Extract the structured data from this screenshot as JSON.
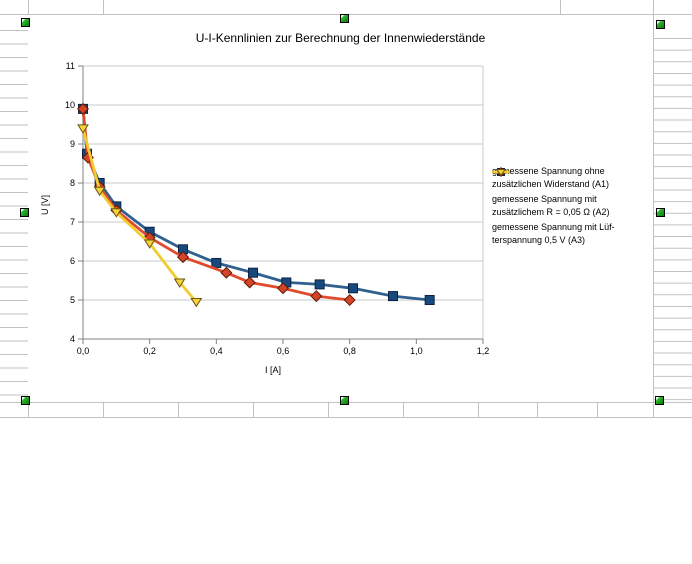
{
  "window": {
    "background_color": "#ffffff",
    "sheet_grid_color": "#c2c2c2",
    "selection_handle_color": "#2fb52f"
  },
  "chart_data": {
    "type": "line",
    "title": "U-I-Kennlinien zur Berechnung der Innenwiederstände",
    "xlabel": "I [A]",
    "ylabel": "U [V]",
    "xlim": [
      0,
      1.2
    ],
    "ylim": [
      4,
      11
    ],
    "x_tick_values": [
      0,
      0.2,
      0.4,
      0.6,
      0.8,
      1.0,
      1.2
    ],
    "x_tick_labels": [
      "0,0",
      "0,2",
      "0,4",
      "0,6",
      "0,8",
      "1,0",
      "1,2"
    ],
    "y_tick_values": [
      4,
      5,
      6,
      7,
      8,
      9,
      10,
      11
    ],
    "y_tick_labels": [
      "4",
      "5",
      "6",
      "7",
      "8",
      "9",
      "10",
      "11"
    ],
    "grid": "horizontal",
    "grid_color": "#c9c9c9",
    "axis_color": "#808080",
    "legend_position": "right",
    "series": [
      {
        "name": "gemessene Spannung ohne zusätzlichen Widerstand (A1)",
        "legend_lines": [
          "gemessene Spannung ohne",
          "zusätzlichen Widerstand (A1)"
        ],
        "marker": "square",
        "line_color": "#30618e",
        "marker_fill": "#17497e",
        "marker_stroke": "#0c2340",
        "points": [
          [
            0,
            9.9
          ],
          [
            0.012,
            8.75
          ],
          [
            0.05,
            8.0
          ],
          [
            0.1,
            7.4
          ],
          [
            0.2,
            6.75
          ],
          [
            0.3,
            6.3
          ],
          [
            0.4,
            5.95
          ],
          [
            0.51,
            5.7
          ],
          [
            0.61,
            5.45
          ],
          [
            0.71,
            5.4
          ],
          [
            0.81,
            5.3
          ],
          [
            0.93,
            5.1
          ],
          [
            1.04,
            5.0
          ]
        ]
      },
      {
        "name": "gemessene Spannung mit zusätzlichem R = 0,05 Ω (A2)",
        "legend_lines": [
          "gemessene Spannung mit",
          "zusätzlichem R = 0,05 Ω (A2)"
        ],
        "marker": "diamond",
        "line_color": "#e04b2c",
        "marker_fill": "#d64427",
        "marker_stroke": "#5c1a08",
        "points": [
          [
            0,
            9.9
          ],
          [
            0.015,
            8.65
          ],
          [
            0.05,
            7.9
          ],
          [
            0.1,
            7.3
          ],
          [
            0.2,
            6.6
          ],
          [
            0.3,
            6.1
          ],
          [
            0.43,
            5.7
          ],
          [
            0.5,
            5.45
          ],
          [
            0.6,
            5.3
          ],
          [
            0.7,
            5.1
          ],
          [
            0.8,
            5.0
          ]
        ]
      },
      {
        "name": "gemessene Spannung mit Lüfterspannung 0,5 V (A3)",
        "legend_lines": [
          "gemessene Spannung mit Lüf-",
          "terspannung 0,5 V (A3)"
        ],
        "marker": "triangle-down",
        "line_color": "#f2cc2e",
        "marker_fill": "#f7d339",
        "marker_stroke": "#6b5510",
        "points": [
          [
            0,
            9.4
          ],
          [
            0.05,
            7.8
          ],
          [
            0.1,
            7.25
          ],
          [
            0.2,
            6.45
          ],
          [
            0.29,
            5.45
          ],
          [
            0.34,
            4.95
          ]
        ]
      }
    ]
  }
}
